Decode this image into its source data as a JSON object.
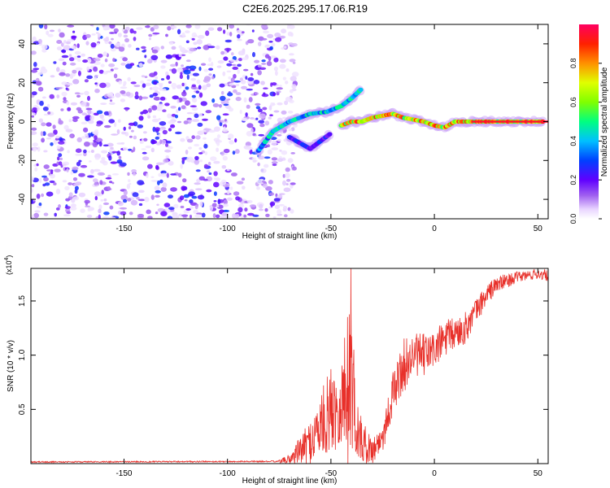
{
  "title": "C2E6.2025.295.17.06.R19",
  "chart_data": [
    {
      "type": "heatmap",
      "name": "spectrogram",
      "xlabel": "Height of straight line (km)",
      "ylabel": "Frequency (Hz)",
      "xlim": [
        -195,
        55
      ],
      "ylim": [
        -50,
        50
      ],
      "xticks": [
        -150,
        -100,
        -50,
        0,
        50
      ],
      "yticks": [
        -40,
        -20,
        0,
        20,
        40
      ],
      "colorbar": {
        "label": "Normalized spectral amplitude",
        "range": [
          0,
          1
        ],
        "ticks": [
          "0.0",
          "0.2",
          "0.4",
          "0.6",
          "0.8"
        ],
        "tick_values": [
          0,
          0.2,
          0.4,
          0.6,
          0.8
        ]
      },
      "noise_region": {
        "x_from": -195,
        "x_to": -75,
        "amplitude": [
          0.03,
          0.3
        ]
      },
      "tracks": [
        {
          "name": "main-carrier",
          "points": [
            [
              -45,
              -2
            ],
            [
              -40,
              0
            ],
            [
              -35,
              0
            ],
            [
              -30,
              2
            ],
            [
              -25,
              3
            ],
            [
              -20,
              4
            ],
            [
              -15,
              2
            ],
            [
              -10,
              1
            ],
            [
              -5,
              0
            ],
            [
              0,
              -2
            ],
            [
              5,
              -3
            ],
            [
              10,
              0
            ],
            [
              15,
              0
            ],
            [
              20,
              0
            ],
            [
              30,
              0
            ],
            [
              40,
              0
            ],
            [
              53,
              0
            ]
          ],
          "amplitude": 0.9
        },
        {
          "name": "upper-branch",
          "points": [
            [
              -85,
              -15
            ],
            [
              -78,
              -5
            ],
            [
              -70,
              0
            ],
            [
              -60,
              4
            ],
            [
              -52,
              5
            ],
            [
              -45,
              8
            ],
            [
              -40,
              12
            ],
            [
              -35,
              17
            ]
          ],
          "amplitude": 0.5
        },
        {
          "name": "lower-branch",
          "points": [
            [
              -70,
              -8
            ],
            [
              -60,
              -14
            ],
            [
              -55,
              -10
            ],
            [
              -50,
              -6
            ]
          ],
          "amplitude": 0.3
        }
      ]
    },
    {
      "type": "line",
      "name": "snr",
      "xlabel": "Height of straight line (km)",
      "ylabel": "SNR (10 * v/v)",
      "y_multiplier_label": "(x10",
      "y_multiplier_exp": "4",
      "xlim": [
        -195,
        55
      ],
      "ylim": [
        0,
        18000
      ],
      "xticks": [
        -150,
        -100,
        -50,
        0,
        50
      ],
      "ytick_values": [
        5000,
        10000,
        15000
      ],
      "ytick_labels": [
        "0.5",
        "1.0",
        "1.5"
      ],
      "color": "#e8302a",
      "envelope": {
        "x": [
          -195,
          -75,
          -70,
          -65,
          -60,
          -55,
          -50,
          -45,
          -42,
          -40,
          -38,
          -35,
          -30,
          -25,
          -20,
          -15,
          -10,
          -5,
          0,
          5,
          10,
          15,
          20,
          25,
          30,
          40,
          50,
          55
        ],
        "mean": [
          150,
          200,
          400,
          1200,
          2000,
          3500,
          5000,
          5500,
          7000,
          10000,
          3500,
          2000,
          1200,
          2500,
          6500,
          9000,
          10000,
          10000,
          10500,
          11500,
          12000,
          12500,
          14000,
          15500,
          16500,
          17200,
          17500,
          17300
        ],
        "spread": [
          150,
          150,
          500,
          1300,
          2000,
          3000,
          4000,
          4000,
          8000,
          9000,
          3000,
          2000,
          1200,
          1500,
          2000,
          2500,
          2000,
          2000,
          1800,
          1800,
          1500,
          1500,
          1200,
          1000,
          800,
          500,
          500,
          500
        ]
      }
    }
  ]
}
